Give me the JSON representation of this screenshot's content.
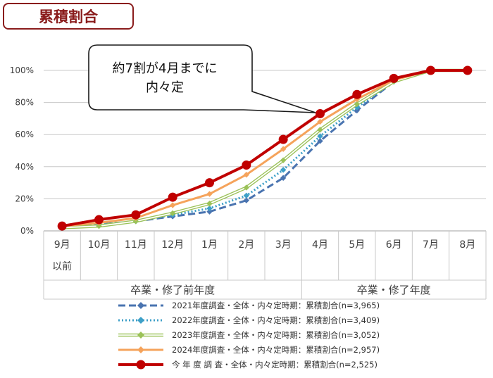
{
  "title": "累積割合",
  "callout": {
    "line1": "約7割が4月までに",
    "line2": "内々定"
  },
  "colors": {
    "title_border": "#8a1c1c",
    "grid": "#c8c8c8",
    "axis_text": "#404040"
  },
  "chart_data": {
    "type": "line",
    "categories": [
      "9月",
      "10月",
      "11月",
      "12月",
      "1月",
      "2月",
      "3月",
      "4月",
      "5月",
      "6月",
      "7月",
      "8月"
    ],
    "category_sublabels": [
      "以前",
      "",
      "",
      "",
      "",
      "",
      "",
      "",
      "",
      "",
      "",
      ""
    ],
    "groups": [
      {
        "label": "卒業・修了前年度",
        "from": 0,
        "to": 6
      },
      {
        "label": "卒業・修了年度",
        "from": 7,
        "to": 11
      }
    ],
    "yticks": [
      "0%",
      "20%",
      "40%",
      "60%",
      "80%",
      "100%"
    ],
    "ylim": [
      0,
      100
    ],
    "grid": true,
    "legend_position": "bottom",
    "series": [
      {
        "name": "2021年度調査・全体・内々定時期：累積割合(n=3,965)",
        "color": "#4a74b0",
        "style": "dashed",
        "marker": "diamond",
        "values": [
          2,
          4,
          6,
          9,
          12,
          19,
          33,
          56,
          75,
          93,
          100,
          100
        ]
      },
      {
        "name": "2022年度調査・全体・内々定時期：累積割合(n=3,409)",
        "color": "#3ea0c8",
        "style": "dotted",
        "marker": "diamond",
        "values": [
          2,
          4,
          6,
          10,
          14,
          22,
          38,
          59,
          77,
          93,
          100,
          100
        ]
      },
      {
        "name": "2023年度調査・全体・内々定時期：累積割合(n=3,052)",
        "color": "#9bc258",
        "style": "double",
        "marker": "diamond",
        "values": [
          2,
          3,
          6,
          11,
          17,
          27,
          44,
          63,
          79,
          93,
          100,
          100
        ]
      },
      {
        "name": "2024年度調査・全体・内々定時期：累積割合(n=2,957)",
        "color": "#f5a35b",
        "style": "solid",
        "marker": "diamond",
        "values": [
          3,
          5,
          8,
          16,
          23,
          35,
          51,
          68,
          82,
          94,
          100,
          100
        ]
      },
      {
        "name": "今 年 度 調 査・全体・内々定時期：累積割合(n=2,525)",
        "color": "#c00000",
        "style": "bold",
        "marker": "circle",
        "values": [
          3,
          7,
          10,
          21,
          30,
          41,
          57,
          73,
          85,
          95,
          100,
          100
        ]
      }
    ]
  }
}
